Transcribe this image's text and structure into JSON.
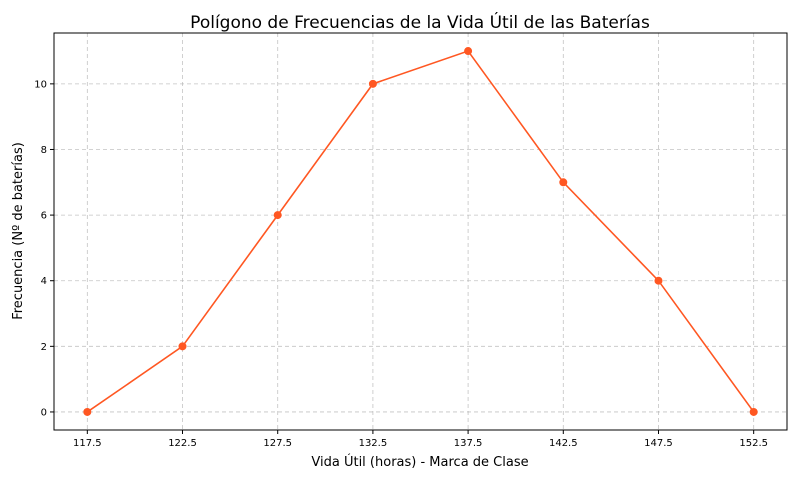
{
  "chart_data": {
    "type": "line",
    "title": "Polígono de Frecuencias de la Vida Útil de las Baterías",
    "xlabel": "Vida Útil (horas) - Marca de Clase",
    "ylabel": "Frecuencia (Nº de baterías)",
    "x": [
      117.5,
      122.5,
      127.5,
      132.5,
      137.5,
      142.5,
      147.5,
      152.5
    ],
    "x_tick_labels": [
      "117.5",
      "122.5",
      "127.5",
      "132.5",
      "137.5",
      "142.5",
      "147.5",
      "152.5"
    ],
    "y": [
      0,
      2,
      6,
      10,
      11,
      7,
      4,
      0
    ],
    "y_ticks": [
      0,
      2,
      4,
      6,
      8,
      10
    ],
    "y_tick_labels": [
      "0",
      "2",
      "4",
      "6",
      "8",
      "10"
    ],
    "xlim": [
      115.75,
      154.25
    ],
    "ylim": [
      -0.55,
      11.55
    ],
    "grid": true,
    "color": "#ff5722"
  }
}
